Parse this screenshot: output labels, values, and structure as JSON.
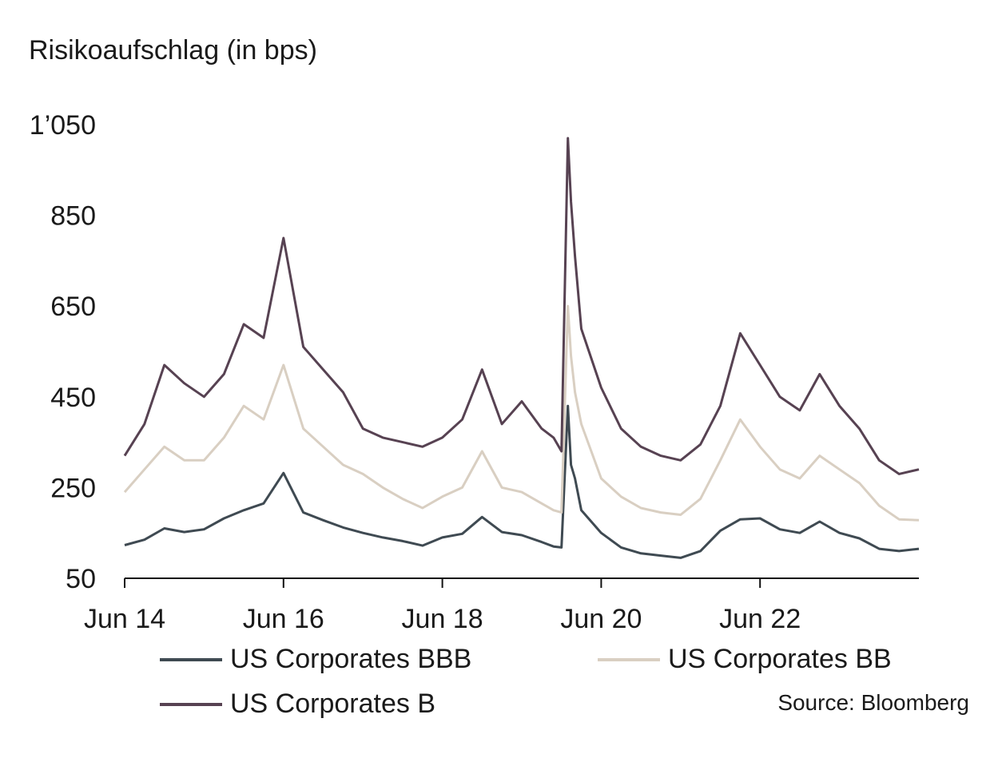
{
  "chart_data": {
    "type": "line",
    "ylabel": "Risikoaufschlag (in bps)",
    "ylim": [
      50,
      1050
    ],
    "yticks": [
      50,
      250,
      450,
      650,
      850,
      1050
    ],
    "ytick_labels": [
      "50",
      "250",
      "450",
      "650",
      "850",
      "1’050"
    ],
    "xlim": [
      2014.5,
      2024.5
    ],
    "xticks": [
      2014.5,
      2016.5,
      2018.5,
      2020.5,
      2022.5
    ],
    "xtick_labels": [
      "Jun 14",
      "Jun 16",
      "Jun 18",
      "Jun 20",
      "Jun 22"
    ],
    "grid": false,
    "legend": "bottom",
    "source": "Source: Bloomberg",
    "x": [
      2014.5,
      2014.75,
      2015.0,
      2015.25,
      2015.5,
      2015.75,
      2016.0,
      2016.25,
      2016.5,
      2016.75,
      2017.0,
      2017.25,
      2017.5,
      2017.75,
      2018.0,
      2018.25,
      2018.5,
      2018.75,
      2019.0,
      2019.25,
      2019.5,
      2019.75,
      2019.9,
      2020.0,
      2020.08,
      2020.12,
      2020.17,
      2020.25,
      2020.5,
      2020.75,
      2021.0,
      2021.25,
      2021.5,
      2021.75,
      2022.0,
      2022.25,
      2022.5,
      2022.75,
      2023.0,
      2023.25,
      2023.5,
      2023.75,
      2024.0,
      2024.25,
      2024.5
    ],
    "series": [
      {
        "name": "US Corporates BBB",
        "color": "#3f4a52",
        "values": [
          123,
          135,
          160,
          152,
          158,
          182,
          200,
          215,
          282,
          195,
          178,
          162,
          150,
          140,
          132,
          122,
          140,
          148,
          185,
          152,
          145,
          130,
          120,
          118,
          430,
          300,
          270,
          200,
          150,
          118,
          105,
          100,
          95,
          110,
          155,
          180,
          182,
          158,
          150,
          175,
          150,
          138,
          115,
          110,
          115
        ]
      },
      {
        "name": "US Corporates BB",
        "color": "#d9cfc2",
        "values": [
          240,
          290,
          340,
          310,
          310,
          360,
          430,
          400,
          520,
          380,
          340,
          300,
          280,
          250,
          225,
          205,
          230,
          250,
          330,
          250,
          240,
          215,
          200,
          195,
          650,
          540,
          460,
          390,
          270,
          230,
          205,
          195,
          190,
          225,
          310,
          400,
          340,
          290,
          270,
          320,
          290,
          260,
          210,
          180,
          178
        ]
      },
      {
        "name": "US Corporates B",
        "color": "#574252",
        "values": [
          320,
          390,
          520,
          480,
          450,
          500,
          610,
          580,
          800,
          560,
          510,
          460,
          380,
          360,
          350,
          340,
          360,
          400,
          510,
          390,
          440,
          380,
          360,
          330,
          1020,
          880,
          760,
          600,
          470,
          380,
          340,
          320,
          310,
          345,
          430,
          590,
          520,
          450,
          420,
          500,
          430,
          380,
          310,
          280,
          290
        ]
      }
    ]
  }
}
